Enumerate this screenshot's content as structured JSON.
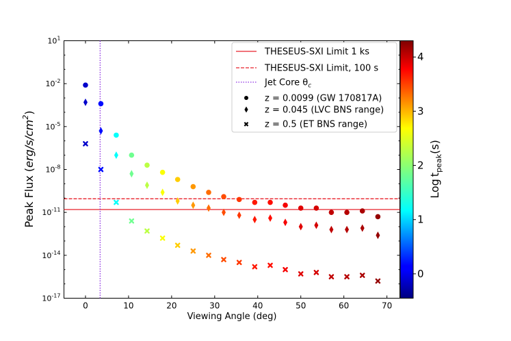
{
  "chart_data": {
    "type": "scatter",
    "title": "",
    "xlabel": "Viewing Angle (deg)",
    "ylabel_main": "Peak Flux (",
    "ylabel_unit": "erg/s/cm",
    "ylabel_sup": "2",
    "ylabel_close": ")",
    "xlim": [
      -5,
      73
    ],
    "ylim_log10": [
      -17,
      1
    ],
    "xticks": [
      0,
      10,
      20,
      30,
      40,
      50,
      60,
      70
    ],
    "xtick_labels": [
      "0",
      "10",
      "20",
      "30",
      "40",
      "50",
      "60",
      "70"
    ],
    "yticks_exp": [
      "1",
      "-2",
      "-5",
      "-8",
      "-11",
      "-14",
      "-17"
    ],
    "ytick_base": "10",
    "colorbar": {
      "label_main": "Log",
      "label_t": "t",
      "label_sub": "peak",
      "label_unit": "(s)",
      "range": [
        -0.45,
        4.3
      ],
      "ticks": [
        "0",
        "1",
        "2",
        "3",
        "4"
      ]
    },
    "lines": [
      {
        "name": "THESEUS-SXI Limit 1 ks",
        "style": "solid",
        "color": "#e8212a",
        "log10_flux": -10.8
      },
      {
        "name": "THESEUS-SXI Limit, 100 s",
        "style": "dashed",
        "color": "#e8212a",
        "log10_flux": -10.05
      },
      {
        "name": "Jet Core θc",
        "style": "dotted",
        "color": "#8a2be2",
        "x": 3.4
      }
    ],
    "legend": {
      "position": "upper right",
      "entries": [
        "THESEUS-SXI Limit 1 ks",
        "THESEUS-SXI Limit, 100 s",
        "Jet Core θ",
        "z = 0.0099 (GW 170817A)",
        "z = 0.045 (LVC BNS range)",
        "z = 0.5 (ET BNS range)"
      ],
      "jet_core_sub": "c"
    },
    "x": [
      0,
      3.57,
      7.14,
      10.7,
      14.3,
      17.9,
      21.4,
      25.0,
      28.6,
      32.1,
      35.7,
      39.3,
      42.9,
      46.4,
      50.0,
      53.6,
      57.1,
      60.7,
      64.3,
      67.9
    ],
    "log_tpeak": [
      -0.1,
      0.2,
      1.35,
      1.85,
      2.2,
      2.5,
      2.75,
      3.0,
      3.2,
      3.35,
      3.45,
      3.6,
      3.65,
      3.75,
      3.85,
      3.9,
      4.0,
      4.05,
      4.1,
      4.2
    ],
    "series": [
      {
        "name": "z = 0.0099 (GW 170817A)",
        "marker": "circle",
        "log10_flux": [
          -2.1,
          -3.4,
          -5.6,
          -7.0,
          -7.7,
          -8.2,
          -8.7,
          -9.2,
          -9.6,
          -9.9,
          -10.1,
          -10.3,
          -10.3,
          -10.5,
          -10.7,
          -10.7,
          -11.0,
          -11.0,
          -10.9,
          -11.3
        ]
      },
      {
        "name": "z = 0.045 (LVC BNS range)",
        "marker": "diamond",
        "log10_flux": [
          -3.3,
          -5.3,
          -7.0,
          -8.3,
          -9.1,
          -9.6,
          -10.2,
          -10.5,
          -10.7,
          -11.0,
          -11.2,
          -11.5,
          -11.4,
          -11.7,
          -12.0,
          -11.9,
          -12.2,
          -12.2,
          -12.1,
          -12.6
        ]
      },
      {
        "name": "z = 0.5 (ET BNS range)",
        "marker": "x",
        "log10_flux": [
          -6.2,
          -8.0,
          -10.3,
          -11.6,
          -12.3,
          -12.8,
          -13.3,
          -13.7,
          -14.0,
          -14.3,
          -14.5,
          -14.8,
          -14.7,
          -15.0,
          -15.3,
          -15.2,
          -15.5,
          -15.5,
          -15.4,
          -15.8
        ]
      }
    ]
  }
}
